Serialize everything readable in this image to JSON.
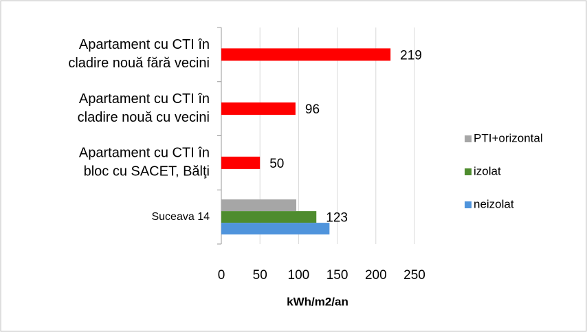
{
  "chart_data": {
    "type": "bar",
    "orientation": "horizontal",
    "categories": [
      [
        "Apartament cu CTI în",
        "cladire nouă fără vecini"
      ],
      [
        "Apartament cu CTI în",
        "cladire nouă cu vecini"
      ],
      [
        "Apartament cu CTI în",
        "bloc cu SACET, Bălţi"
      ],
      [
        "Suceava 14"
      ]
    ],
    "series": [
      {
        "color": "#ff0000",
        "values": [
          219,
          96,
          50,
          null
        ],
        "show_labels": true
      },
      {
        "name": "PTI+orizontal",
        "color": "#a6a6a6",
        "values": [
          null,
          null,
          null,
          97
        ],
        "show_labels": false
      },
      {
        "name": "izolat",
        "color": "#4e8c2e",
        "values": [
          null,
          null,
          null,
          123
        ],
        "show_labels": true
      },
      {
        "name": "neizolat",
        "color": "#4f94dc",
        "values": [
          null,
          null,
          null,
          140
        ],
        "show_labels": false
      }
    ],
    "xlabel": "kWh/m2/an",
    "xlim": [
      0,
      250
    ],
    "xticks": [
      0,
      50,
      100,
      150,
      200,
      250
    ],
    "grid": true,
    "legend": "right"
  }
}
